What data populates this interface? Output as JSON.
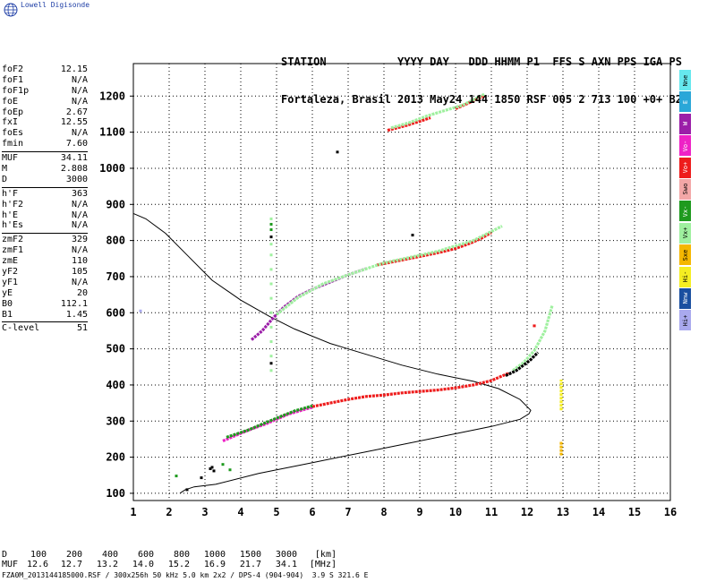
{
  "app": {
    "logo_text": "Lowell Digisonde",
    "logo_icon": "globe-icon"
  },
  "header": {
    "line1": "STATION           YYYY DAY   DDD HHMM P1  FFS S AXN PPS IGA PS",
    "line2": "Fortaleza, Brasil 2013 May24 144 1850 RSF 005 2 713 100 +0+ B2"
  },
  "parameters": [
    {
      "group": [
        {
          "name": "foF2",
          "value": "12.15"
        },
        {
          "name": "foF1",
          "value": "N/A"
        },
        {
          "name": "foF1p",
          "value": "N/A"
        },
        {
          "name": "foE",
          "value": "N/A"
        },
        {
          "name": "foEp",
          "value": "2.67"
        },
        {
          "name": "fxI",
          "value": "12.55"
        },
        {
          "name": "foEs",
          "value": "N/A"
        },
        {
          "name": "fmin",
          "value": "7.60"
        }
      ]
    },
    {
      "group": [
        {
          "name": "MUF",
          "value": "34.11"
        },
        {
          "name": "M",
          "value": "2.808"
        },
        {
          "name": "D",
          "value": "3000"
        }
      ]
    },
    {
      "group": [
        {
          "name": "h'F",
          "value": "363"
        },
        {
          "name": "h'F2",
          "value": "N/A"
        },
        {
          "name": "h'E",
          "value": "N/A"
        },
        {
          "name": "h'Es",
          "value": "N/A"
        }
      ]
    },
    {
      "group": [
        {
          "name": "zmF2",
          "value": "329"
        },
        {
          "name": "zmF1",
          "value": "N/A"
        },
        {
          "name": "zmE",
          "value": "110"
        },
        {
          "name": "yF2",
          "value": "105"
        },
        {
          "name": "yF1",
          "value": "N/A"
        },
        {
          "name": "yE",
          "value": "20"
        },
        {
          "name": "B0",
          "value": "112.1"
        },
        {
          "name": "B1",
          "value": "1.45"
        }
      ]
    },
    {
      "group": [
        {
          "name": "C-level",
          "value": "51"
        }
      ]
    }
  ],
  "legend": [
    {
      "label": "Nne",
      "color": "#66e8ee"
    },
    {
      "label": "E",
      "color": "#2aa7d8"
    },
    {
      "label": "W",
      "color": "#9b1ea8"
    },
    {
      "label": "Vo-",
      "color": "#ee22c6"
    },
    {
      "label": "Vo+",
      "color": "#ee1c1c"
    },
    {
      "label": "Swo",
      "color": "#f3a7a7"
    },
    {
      "label": "Vx-",
      "color": "#1e9a1e"
    },
    {
      "label": "Vx+",
      "color": "#9ff09f"
    },
    {
      "label": "Sxe",
      "color": "#f5b700"
    },
    {
      "label": "Hi-",
      "color": "#f5ee22"
    },
    {
      "label": "Nnw",
      "color": "#1a4fa0"
    },
    {
      "label": "Hi+",
      "color": "#a9a9ee"
    }
  ],
  "footer": {
    "d_label": "D",
    "d_values": [
      "100",
      "200",
      "400",
      "600",
      "800",
      "1000",
      "1500",
      "3000"
    ],
    "d_unit": "[km]",
    "muf_label": "MUF",
    "muf_values": [
      "12.6",
      "12.7",
      "13.2",
      "14.0",
      "15.2",
      "16.9",
      "21.7",
      "34.1"
    ],
    "muf_unit": "[MHz]",
    "file_info": "FZA0M_2013144185000.RSF / 300x256h 50 kHz 5.0 km 2x2 / DPS-4 (904-904)  3.9 S 321.6 E"
  },
  "chart_data": {
    "type": "scatter",
    "title": "",
    "xlabel": "",
    "ylabel": "",
    "xlim": [
      1,
      16
    ],
    "ylim": [
      80,
      1290
    ],
    "x_ticks": [
      1,
      2,
      3,
      4,
      5,
      6,
      7,
      8,
      9,
      10,
      11,
      12,
      13,
      14,
      15,
      16
    ],
    "y_ticks": [
      100,
      200,
      300,
      400,
      500,
      600,
      700,
      800,
      900,
      1000,
      1100,
      1200
    ],
    "grid": true,
    "series": [
      {
        "color": "#000000",
        "kind": "line",
        "points": [
          [
            2.3,
            100
          ],
          [
            2.45,
            110
          ],
          [
            2.7,
            118
          ],
          [
            3.3,
            125
          ],
          [
            4.5,
            155
          ],
          [
            6.0,
            185
          ],
          [
            7.5,
            215
          ],
          [
            9.0,
            245
          ],
          [
            10.0,
            265
          ],
          [
            11.0,
            285
          ],
          [
            11.8,
            305
          ],
          [
            12.05,
            320
          ],
          [
            12.1,
            330
          ],
          [
            11.8,
            360
          ],
          [
            11.2,
            390
          ],
          [
            10.5,
            410
          ],
          [
            9.5,
            430
          ],
          [
            8.5,
            455
          ],
          [
            7.5,
            485
          ],
          [
            6.5,
            515
          ],
          [
            5.5,
            555
          ],
          [
            4.8,
            590
          ],
          [
            4.0,
            635
          ],
          [
            3.2,
            690
          ],
          [
            2.5,
            760
          ],
          [
            1.9,
            820
          ],
          [
            1.35,
            860
          ],
          [
            1.0,
            875
          ]
        ]
      },
      {
        "color": "#ee1c1c",
        "kind": "trace",
        "points": [
          [
            6.0,
            340
          ],
          [
            6.5,
            350
          ],
          [
            7.0,
            360
          ],
          [
            7.5,
            368
          ],
          [
            8.0,
            372
          ],
          [
            8.5,
            378
          ],
          [
            9.0,
            382
          ],
          [
            9.5,
            386
          ],
          [
            10.0,
            392
          ],
          [
            10.5,
            400
          ],
          [
            11.0,
            412
          ],
          [
            11.3,
            425
          ],
          [
            11.5,
            433
          ]
        ]
      },
      {
        "color": "#ee22c6",
        "kind": "trace",
        "points": [
          [
            3.5,
            245
          ],
          [
            3.9,
            262
          ],
          [
            4.3,
            278
          ],
          [
            4.7,
            292
          ],
          [
            5.0,
            305
          ],
          [
            5.3,
            318
          ],
          [
            5.7,
            330
          ],
          [
            6.0,
            338
          ]
        ]
      },
      {
        "color": "#1e9a1e",
        "kind": "trace",
        "points": [
          [
            3.6,
            255
          ],
          [
            4.2,
            275
          ],
          [
            4.8,
            300
          ],
          [
            5.2,
            316
          ],
          [
            5.5,
            328
          ],
          [
            6.0,
            342
          ]
        ]
      },
      {
        "color": "#ee1c1c",
        "kind": "trace",
        "points": [
          [
            7.8,
            732
          ],
          [
            8.3,
            742
          ],
          [
            8.8,
            752
          ],
          [
            9.2,
            760
          ],
          [
            9.6,
            768
          ],
          [
            10.0,
            778
          ],
          [
            10.4,
            792
          ],
          [
            10.7,
            805
          ],
          [
            11.0,
            822
          ]
        ]
      },
      {
        "color": "#9b1ea8",
        "kind": "trace",
        "points": [
          [
            4.3,
            525
          ],
          [
            4.6,
            550
          ],
          [
            4.9,
            585
          ],
          [
            5.2,
            615
          ],
          [
            5.6,
            645
          ],
          [
            6.0,
            665
          ],
          [
            6.5,
            685
          ],
          [
            7.0,
            705
          ],
          [
            7.5,
            722
          ]
        ]
      },
      {
        "color": "#9ff09f",
        "kind": "trace",
        "points": [
          [
            5.0,
            595
          ],
          [
            5.6,
            642
          ],
          [
            6.3,
            680
          ],
          [
            7.0,
            705
          ],
          [
            8.0,
            738
          ],
          [
            8.8,
            755
          ],
          [
            9.5,
            770
          ],
          [
            10.5,
            800
          ],
          [
            11.3,
            840
          ]
        ]
      },
      {
        "color": "#ee1c1c",
        "kind": "trace",
        "points": [
          [
            8.1,
            1105
          ],
          [
            8.6,
            1118
          ],
          [
            9.0,
            1130
          ],
          [
            9.3,
            1140
          ]
        ]
      },
      {
        "color": "#ee1c1c",
        "kind": "trace",
        "points": [
          [
            10.0,
            1165
          ],
          [
            10.3,
            1178
          ],
          [
            10.6,
            1192
          ],
          [
            10.8,
            1200
          ]
        ]
      },
      {
        "color": "#9ff09f",
        "kind": "trace",
        "points": [
          [
            8.2,
            1112
          ],
          [
            8.7,
            1126
          ],
          [
            9.2,
            1145
          ],
          [
            10.2,
            1175
          ],
          [
            10.8,
            1205
          ]
        ]
      },
      {
        "color": "#9ff09f",
        "kind": "trace",
        "points": [
          [
            11.6,
            440
          ],
          [
            11.9,
            462
          ],
          [
            12.2,
            495
          ],
          [
            12.5,
            550
          ],
          [
            12.7,
            620
          ]
        ]
      },
      {
        "color": "#000000",
        "kind": "trace",
        "points": [
          [
            11.4,
            426
          ],
          [
            11.7,
            440
          ],
          [
            11.9,
            455
          ],
          [
            12.1,
            470
          ],
          [
            12.3,
            490
          ]
        ]
      },
      {
        "color": "#f5ee22",
        "kind": "trace",
        "points": [
          [
            12.95,
            330
          ],
          [
            12.95,
            360
          ],
          [
            12.95,
            390
          ],
          [
            12.95,
            415
          ]
        ]
      },
      {
        "color": "#f5b700",
        "kind": "trace",
        "points": [
          [
            12.95,
            205
          ],
          [
            12.95,
            225
          ],
          [
            12.95,
            245
          ]
        ]
      },
      {
        "color": "#ee1c1c",
        "kind": "trace",
        "points": [
          [
            12.2,
            560
          ],
          [
            12.2,
            570
          ]
        ]
      },
      {
        "color": "#000000",
        "kind": "dots",
        "points": [
          [
            2.9,
            143
          ],
          [
            3.15,
            168
          ],
          [
            3.25,
            162
          ],
          [
            3.2,
            172
          ],
          [
            2.5,
            110
          ],
          [
            4.85,
            810
          ],
          [
            4.85,
            460
          ],
          [
            6.7,
            1045
          ],
          [
            8.8,
            815
          ]
        ]
      },
      {
        "color": "#1e9a1e",
        "kind": "dots",
        "points": [
          [
            3.5,
            180
          ],
          [
            3.7,
            165
          ],
          [
            2.2,
            148
          ],
          [
            4.85,
            845
          ],
          [
            4.85,
            830
          ]
        ]
      },
      {
        "color": "#9ff09f",
        "kind": "dots",
        "points": [
          [
            4.85,
            860
          ],
          [
            4.85,
            790
          ],
          [
            4.85,
            760
          ],
          [
            4.85,
            720
          ],
          [
            4.85,
            680
          ],
          [
            4.85,
            640
          ],
          [
            4.85,
            600
          ],
          [
            4.85,
            560
          ],
          [
            4.85,
            520
          ],
          [
            4.85,
            480
          ],
          [
            4.85,
            440
          ]
        ]
      },
      {
        "color": "#a9a9ee",
        "kind": "dots",
        "points": [
          [
            1.2,
            605
          ]
        ]
      }
    ]
  }
}
